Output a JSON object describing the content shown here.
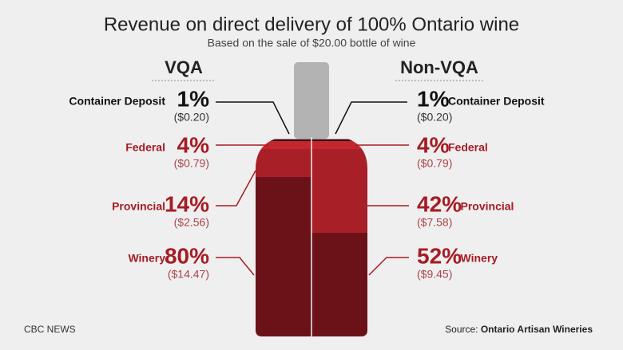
{
  "title": "Revenue on direct delivery of 100% Ontario wine",
  "subtitle": "Based on the sale of $20.00 bottle of wine",
  "labels": [
    "Container Deposit",
    "Federal",
    "Provincial",
    "Winery"
  ],
  "colors": [
    "#3a0d12",
    "#c4262e",
    "#a91f28",
    "#6b1219"
  ],
  "sides": [
    {
      "name": "VQA",
      "values": [
        1,
        4,
        14,
        80
      ],
      "value_labels": [
        "1%",
        "4%",
        "14%",
        "80%"
      ],
      "amounts": [
        "($0.20)",
        "($0.79)",
        "($2.56)",
        "($14.47)"
      ]
    },
    {
      "name": "Non-VQA",
      "values": [
        1,
        4,
        42,
        52
      ],
      "value_labels": [
        "1%",
        "4%",
        "42%",
        "52%"
      ],
      "amounts": [
        "($0.20)",
        "($0.79)",
        "($7.58)",
        "($9.45)"
      ]
    }
  ],
  "footer": {
    "credit": "CBC NEWS",
    "source_prefix": "Source:",
    "source": "Ontario Artisan Wineries"
  }
}
